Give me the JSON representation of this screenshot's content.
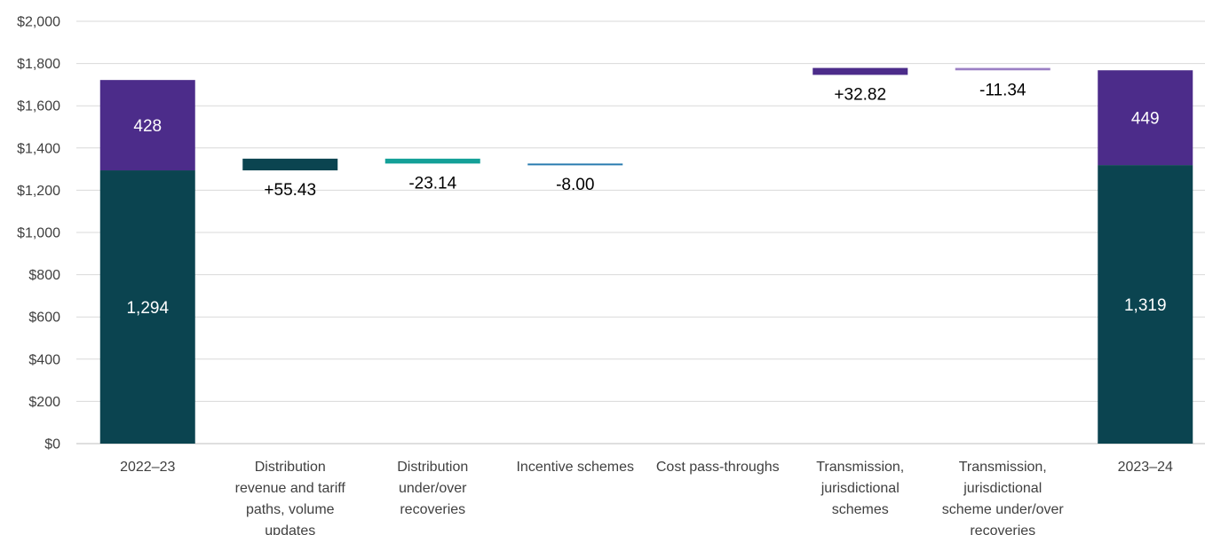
{
  "chart_data": {
    "type": "bar",
    "subtype": "waterfall",
    "title": "",
    "xlabel": "",
    "ylabel": "",
    "ylim": [
      0,
      2000
    ],
    "ytick_step": 200,
    "ytick_labels": [
      "$0",
      "$200",
      "$400",
      "$600",
      "$800",
      "$1,000",
      "$1,200",
      "$1,400",
      "$1,600",
      "$1,800",
      "$2,000"
    ],
    "grid": true,
    "legend": "none",
    "categories": [
      [
        "2022–23"
      ],
      [
        "Distribution",
        "revenue and tariff",
        "paths, volume",
        "updates"
      ],
      [
        "Distribution",
        "under/over",
        "recoveries"
      ],
      [
        "Incentive schemes"
      ],
      [
        "Cost pass-throughs"
      ],
      [
        "Transmission,",
        "jurisdictional",
        "schemes"
      ],
      [
        "Transmission,",
        "jurisdictional",
        "scheme under/over",
        "recoveries"
      ],
      [
        "2023–24"
      ]
    ],
    "totals": [
      {
        "index": 0,
        "segments": [
          {
            "value": 1294,
            "label": "1,294",
            "color": "#0b4450"
          },
          {
            "value": 428,
            "label": "428",
            "color": "#4c2c8a"
          }
        ]
      },
      {
        "index": 7,
        "segments": [
          {
            "value": 1319,
            "label": "1,319",
            "color": "#0b4450"
          },
          {
            "value": 449,
            "label": "449",
            "color": "#4c2c8a"
          }
        ]
      }
    ],
    "changes": [
      {
        "index": 1,
        "value": 55.43,
        "label": "+55.43",
        "color": "#0b4450"
      },
      {
        "index": 2,
        "value": -23.14,
        "label": "-23.14",
        "color": "#14a098"
      },
      {
        "index": 3,
        "value": -8.0,
        "label": "-8.00",
        "color": "#2a7cb0"
      },
      {
        "index": 4,
        "value": 0,
        "label": "",
        "color": "#2a7cb0"
      },
      {
        "index": 5,
        "value": 32.82,
        "label": "+32.82",
        "color": "#4c2c8a"
      },
      {
        "index": 6,
        "value": -11.34,
        "label": "-11.34",
        "color": "#9b7fc4"
      }
    ],
    "step_levels": [
      {
        "index": 1,
        "from": 1294,
        "to": 1349.43
      },
      {
        "index": 2,
        "from": 1349.43,
        "to": 1326.29
      },
      {
        "index": 3,
        "from": 1326.29,
        "to": 1318.29
      },
      {
        "index": 5,
        "from": 1746.29,
        "to": 1779.11
      },
      {
        "index": 6,
        "from": 1779.11,
        "to": 1767.77
      }
    ]
  }
}
